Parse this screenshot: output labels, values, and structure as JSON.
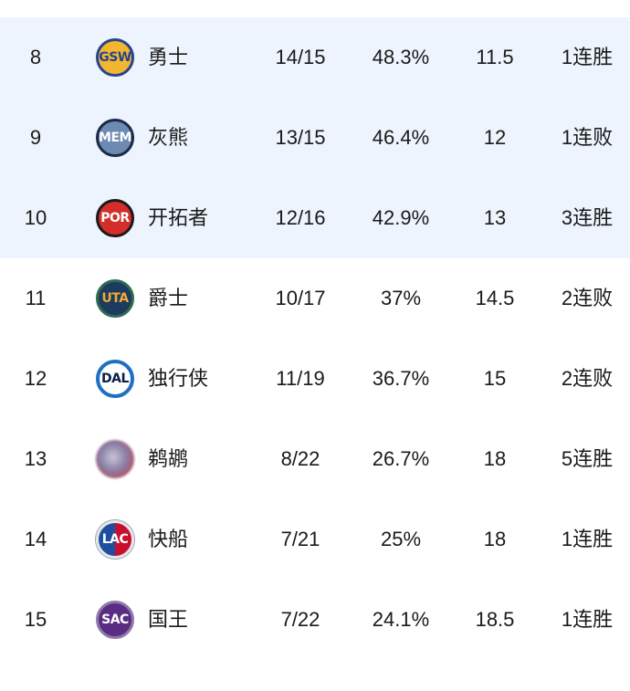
{
  "standings": {
    "rows": [
      {
        "rank": "8",
        "logo_text": "GSW",
        "team": "勇士",
        "record": "14/15",
        "pct": "48.3%",
        "gb": "11.5",
        "streak": "1连胜",
        "highlight": true
      },
      {
        "rank": "9",
        "logo_text": "MEM",
        "team": "灰熊",
        "record": "13/15",
        "pct": "46.4%",
        "gb": "12",
        "streak": "1连败",
        "highlight": true
      },
      {
        "rank": "10",
        "logo_text": "POR",
        "team": "开拓者",
        "record": "12/16",
        "pct": "42.9%",
        "gb": "13",
        "streak": "3连胜",
        "highlight": true
      },
      {
        "rank": "11",
        "logo_text": "UTA",
        "team": "爵士",
        "record": "10/17",
        "pct": "37%",
        "gb": "14.5",
        "streak": "2连败",
        "highlight": false
      },
      {
        "rank": "12",
        "logo_text": "DAL",
        "team": "独行侠",
        "record": "11/19",
        "pct": "36.7%",
        "gb": "15",
        "streak": "2连败",
        "highlight": false
      },
      {
        "rank": "13",
        "logo_text": "",
        "team": "鹈鹕",
        "record": "8/22",
        "pct": "26.7%",
        "gb": "18",
        "streak": "5连胜",
        "highlight": false
      },
      {
        "rank": "14",
        "logo_text": "LAC",
        "team": "快船",
        "record": "7/21",
        "pct": "25%",
        "gb": "18",
        "streak": "1连胜",
        "highlight": false
      },
      {
        "rank": "15",
        "logo_text": "SAC",
        "team": "国王",
        "record": "7/22",
        "pct": "24.1%",
        "gb": "18.5",
        "streak": "1连胜",
        "highlight": false
      }
    ]
  },
  "colors": {
    "highlight_background": "#eef4fd",
    "text": "#1a1a1a"
  }
}
